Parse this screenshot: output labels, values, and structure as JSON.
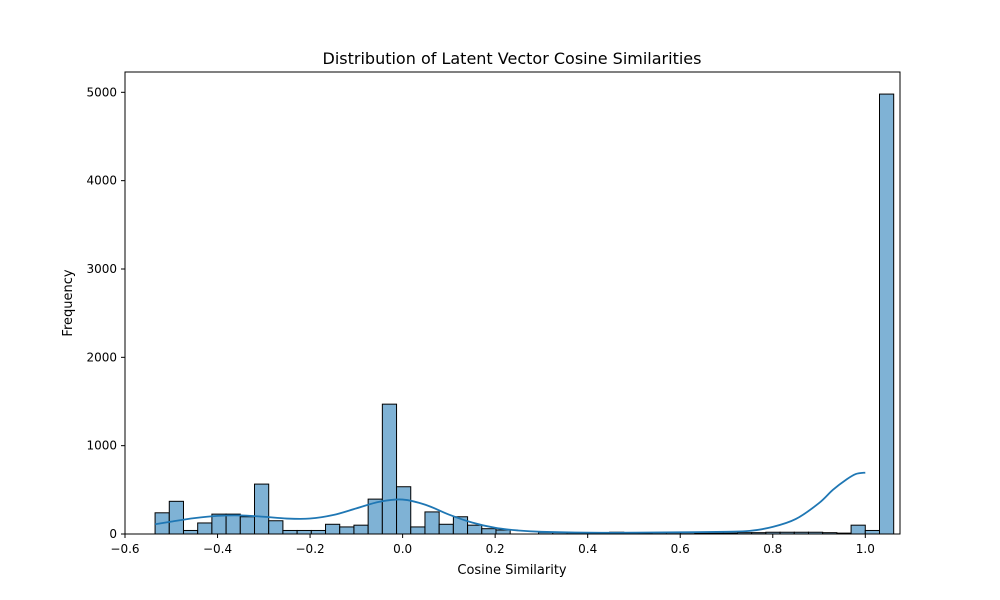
{
  "chart_data": {
    "type": "bar",
    "subtype": "histogram-with-kde",
    "title": "Distribution of Latent Vector Cosine Similarities",
    "xlabel": "Cosine Similarity",
    "ylabel": "Frequency",
    "xlim": [
      -0.6,
      1.075
    ],
    "ylim": [
      0,
      5230
    ],
    "xticks": [
      -0.6,
      -0.4,
      -0.2,
      0.0,
      0.2,
      0.4,
      0.6,
      0.8,
      1.0
    ],
    "xtick_labels": [
      "−0.6",
      "−0.4",
      "−0.2",
      "0.0",
      "0.2",
      "0.4",
      "0.6",
      "0.8",
      "1.0"
    ],
    "yticks": [
      0,
      1000,
      2000,
      3000,
      4000,
      5000
    ],
    "ytick_labels": [
      "0",
      "1000",
      "2000",
      "3000",
      "4000",
      "5000"
    ],
    "grid": false,
    "colors": {
      "bar_fill": "#7fb2d5",
      "bar_edge": "#000000",
      "kde_line": "#1f77b4"
    },
    "bins": {
      "start": -0.535,
      "width": 0.0307,
      "counts": [
        240,
        370,
        40,
        125,
        225,
        225,
        195,
        565,
        150,
        40,
        40,
        40,
        110,
        80,
        100,
        395,
        1470,
        535,
        80,
        250,
        110,
        195,
        100,
        60,
        45,
        0,
        0,
        20,
        20,
        15,
        10,
        15,
        20,
        15,
        10,
        15,
        15,
        15,
        10,
        10,
        10,
        15,
        15,
        20,
        20,
        20,
        20,
        15,
        10,
        100,
        40,
        4980
      ]
    },
    "kde": {
      "x": [
        -0.535,
        -0.5,
        -0.45,
        -0.4,
        -0.35,
        -0.3,
        -0.25,
        -0.2,
        -0.15,
        -0.1,
        -0.05,
        0.0,
        0.05,
        0.1,
        0.15,
        0.2,
        0.25,
        0.3,
        0.4,
        0.5,
        0.6,
        0.7,
        0.75,
        0.8,
        0.85,
        0.9,
        0.93,
        0.96,
        0.98,
        1.0
      ],
      "y": [
        110,
        140,
        180,
        205,
        210,
        195,
        175,
        175,
        215,
        290,
        365,
        390,
        330,
        220,
        130,
        70,
        40,
        25,
        15,
        15,
        20,
        25,
        35,
        80,
        170,
        350,
        500,
        620,
        680,
        695
      ]
    }
  }
}
